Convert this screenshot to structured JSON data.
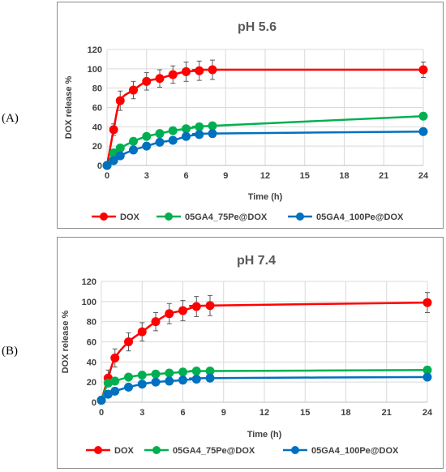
{
  "panels": [
    {
      "label": "(A)"
    },
    {
      "label": "(B)"
    }
  ],
  "chart_data": [
    {
      "type": "line",
      "title": "pH 5.6",
      "xlabel": "Time (h)",
      "ylabel": "DOX release %",
      "xlim": [
        0,
        24
      ],
      "ylim": [
        0,
        120
      ],
      "xticks": [
        0,
        3,
        6,
        9,
        12,
        15,
        18,
        21,
        24
      ],
      "yticks": [
        0,
        20,
        40,
        60,
        80,
        100,
        120
      ],
      "grid": true,
      "legend_position": "bottom",
      "series": [
        {
          "name": "DOX",
          "color": "#ff0000",
          "x": [
            0,
            0.5,
            1,
            2,
            3,
            4,
            5,
            6,
            7,
            8,
            24
          ],
          "y": [
            0,
            37,
            67,
            78,
            87,
            90,
            94,
            97,
            98,
            99,
            99
          ],
          "err": [
            0,
            6,
            10,
            9,
            9,
            9,
            9,
            10,
            10,
            10,
            8
          ]
        },
        {
          "name": "05GA4_75Pe@DOX",
          "color": "#00b050",
          "x": [
            0,
            0.5,
            1,
            2,
            3,
            4,
            5,
            6,
            7,
            8,
            24
          ],
          "y": [
            0,
            13,
            18,
            25,
            30,
            33,
            36,
            38,
            40,
            41,
            51
          ],
          "err": [
            0,
            3,
            3,
            3,
            3,
            3,
            3,
            3,
            3,
            3,
            3
          ]
        },
        {
          "name": "05GA4_100Pe@DOX",
          "color": "#0070c0",
          "x": [
            0,
            0.5,
            1,
            2,
            3,
            4,
            5,
            6,
            7,
            8,
            24
          ],
          "y": [
            0,
            5,
            10,
            16,
            20,
            24,
            26,
            30,
            32,
            33,
            35
          ],
          "err": [
            0,
            2,
            2,
            2,
            2,
            2,
            2,
            2,
            2,
            2,
            2
          ]
        }
      ]
    },
    {
      "type": "line",
      "title": "pH 7.4",
      "xlabel": "Time (h)",
      "ylabel": "DOX release %",
      "xlim": [
        0,
        24
      ],
      "ylim": [
        0,
        120
      ],
      "xticks": [
        0,
        3,
        6,
        9,
        12,
        15,
        18,
        21,
        24
      ],
      "yticks": [
        0,
        20,
        40,
        60,
        80,
        100,
        120
      ],
      "grid": true,
      "legend_position": "bottom",
      "series": [
        {
          "name": "DOX",
          "color": "#ff0000",
          "x": [
            0,
            0.5,
            1,
            2,
            3,
            4,
            5,
            6,
            7,
            8,
            24
          ],
          "y": [
            2,
            24,
            44,
            60,
            70,
            80,
            88,
            91,
            95,
            96,
            99
          ],
          "err": [
            0,
            8,
            9,
            9,
            9,
            9,
            10,
            10,
            10,
            10,
            10
          ]
        },
        {
          "name": "05GA4_75Pe@DOX",
          "color": "#00b050",
          "x": [
            0,
            0.5,
            1,
            2,
            3,
            4,
            5,
            6,
            7,
            8,
            24
          ],
          "y": [
            2,
            19,
            21,
            25,
            27,
            28,
            29,
            30,
            31,
            31,
            32
          ],
          "err": [
            0,
            2,
            2,
            2,
            2,
            2,
            2,
            2,
            2,
            2,
            2
          ]
        },
        {
          "name": "05GA4_100Pe@DOX",
          "color": "#0070c0",
          "x": [
            0,
            0.5,
            1,
            2,
            3,
            4,
            5,
            6,
            7,
            8,
            24
          ],
          "y": [
            2,
            8,
            11,
            15,
            18,
            20,
            21,
            22,
            23,
            24,
            25
          ],
          "err": [
            0,
            2,
            2,
            2,
            2,
            2,
            2,
            2,
            2,
            2,
            2
          ]
        }
      ]
    }
  ]
}
